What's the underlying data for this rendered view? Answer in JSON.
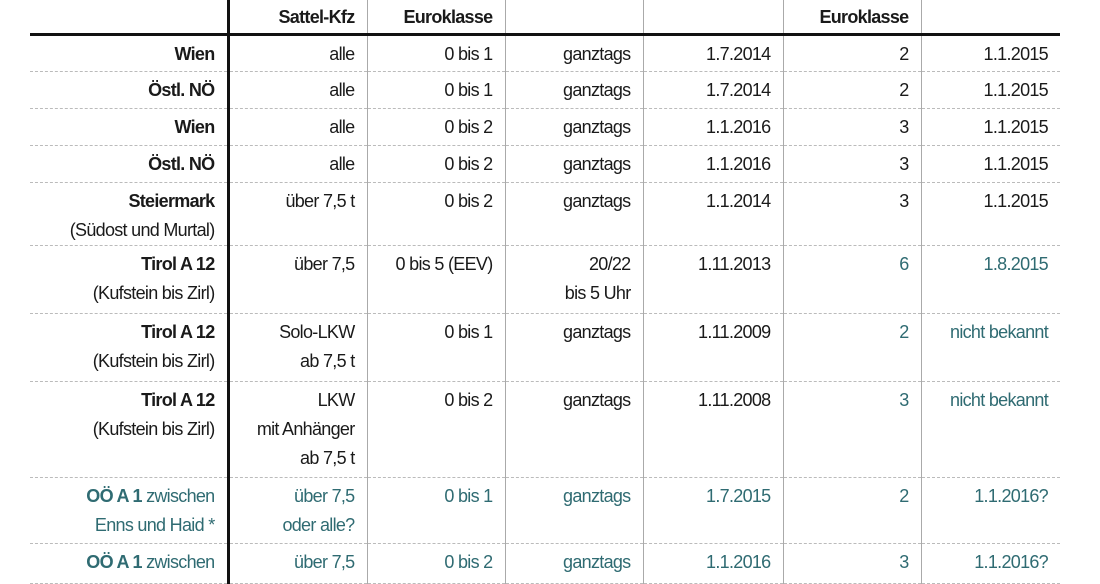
{
  "accent_color": "#2f6b72",
  "headers": [
    "",
    "Sattel-Kfz",
    "Euroklasse",
    "",
    "",
    "Euroklasse",
    ""
  ],
  "rows": [
    {
      "label": {
        "bold": "Wien",
        "rest": ""
      },
      "accent": false,
      "cells": [
        {
          "text": "alle"
        },
        {
          "text": "0 bis 1"
        },
        {
          "text": "ganztags"
        },
        {
          "text": "1.7.2014"
        },
        {
          "text": "2"
        },
        {
          "text": "1.1.2015"
        }
      ]
    },
    {
      "label": {
        "bold": "Östl. NÖ",
        "rest": ""
      },
      "accent": false,
      "cells": [
        {
          "text": "alle"
        },
        {
          "text": "0 bis 1"
        },
        {
          "text": "ganztags"
        },
        {
          "text": "1.7.2014"
        },
        {
          "text": "2"
        },
        {
          "text": "1.1.2015"
        }
      ]
    },
    {
      "label": {
        "bold": "Wien",
        "rest": ""
      },
      "accent": false,
      "cells": [
        {
          "text": "alle"
        },
        {
          "text": "0 bis 2"
        },
        {
          "text": "ganztags"
        },
        {
          "text": "1.1.2016"
        },
        {
          "text": "3"
        },
        {
          "text": "1.1.2015"
        }
      ]
    },
    {
      "label": {
        "bold": "Östl. NÖ",
        "rest": ""
      },
      "accent": false,
      "cells": [
        {
          "text": "alle"
        },
        {
          "text": "0 bis 2"
        },
        {
          "text": "ganztags"
        },
        {
          "text": "1.1.2016"
        },
        {
          "text": "3"
        },
        {
          "text": "1.1.2015"
        }
      ]
    },
    {
      "label": {
        "bold": "Steiermark",
        "rest": "\n(Südost und Murtal)"
      },
      "accent": false,
      "cells": [
        {
          "text": "über 7,5 t"
        },
        {
          "text": "0 bis 2"
        },
        {
          "text": "ganztags"
        },
        {
          "text": "1.1.2014"
        },
        {
          "text": "3"
        },
        {
          "text": "1.1.2015"
        }
      ]
    },
    {
      "label": {
        "bold": "Tirol A 12",
        "rest": "\n(Kufstein bis Zirl)"
      },
      "accent": false,
      "cells": [
        {
          "text": "über 7,5"
        },
        {
          "text": "0 bis 5 (EEV)"
        },
        {
          "text": "20/22\nbis 5 Uhr"
        },
        {
          "text": "1.11.2013"
        },
        {
          "text": "6",
          "accent": true
        },
        {
          "text": "1.8.2015",
          "accent": true
        }
      ]
    },
    {
      "label": {
        "bold": "Tirol A 12",
        "rest": "\n(Kufstein bis Zirl)"
      },
      "accent": false,
      "cells": [
        {
          "text": "Solo-LKW\nab 7,5 t"
        },
        {
          "text": "0 bis 1"
        },
        {
          "text": "ganztags"
        },
        {
          "text": "1.11.2009"
        },
        {
          "text": "2",
          "accent": true
        },
        {
          "text": "nicht bekannt",
          "accent": true
        }
      ]
    },
    {
      "label": {
        "bold": "Tirol A 12",
        "rest": "\n(Kufstein bis Zirl)"
      },
      "accent": false,
      "cells": [
        {
          "text": "LKW\nmit Anhänger\nab 7,5 t"
        },
        {
          "text": "0 bis 2"
        },
        {
          "text": "ganztags"
        },
        {
          "text": "1.11.2008"
        },
        {
          "text": "3",
          "accent": true
        },
        {
          "text": "nicht bekannt",
          "accent": true
        }
      ]
    },
    {
      "label": {
        "bold": "OÖ A 1",
        "rest": " zwischen\nEnns und Haid *"
      },
      "accent": true,
      "cells": [
        {
          "text": "über 7,5\noder alle?"
        },
        {
          "text": "0 bis 1"
        },
        {
          "text": "ganztags"
        },
        {
          "text": "1.7.2015"
        },
        {
          "text": "2"
        },
        {
          "text": "1.1.2016?"
        }
      ]
    },
    {
      "label": {
        "bold": "OÖ A 1",
        "rest": " zwischen"
      },
      "accent": true,
      "cells": [
        {
          "text": "über 7,5"
        },
        {
          "text": "0 bis 2"
        },
        {
          "text": "ganztags"
        },
        {
          "text": "1.1.2016"
        },
        {
          "text": "3"
        },
        {
          "text": "1.1.2016?"
        }
      ]
    }
  ]
}
